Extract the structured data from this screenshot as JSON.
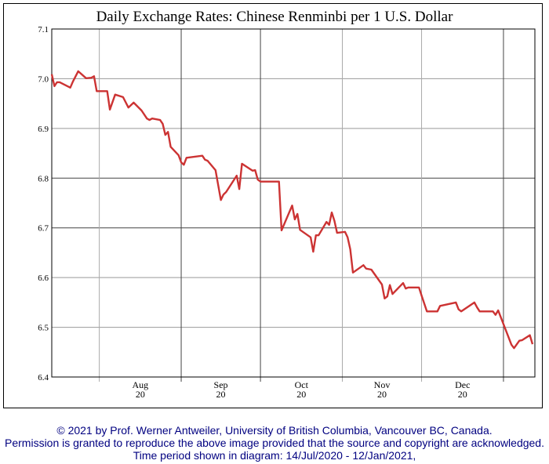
{
  "chart_data": {
    "type": "line",
    "title": "Daily Exchange Rates: Chinese Renminbi per 1 U.S. Dollar",
    "xlabel": "",
    "ylabel": "",
    "ylim": [
      6.4,
      7.1
    ],
    "xlim": [
      "2020-07-14",
      "2021-01-12"
    ],
    "yticks": [
      "6.4",
      "6.5",
      "6.6",
      "6.7",
      "6.8",
      "6.9",
      "7.0",
      "7.1"
    ],
    "xticks": [
      {
        "month": "Aug",
        "year": "20"
      },
      {
        "month": "Sep",
        "year": "20"
      },
      {
        "month": "Oct",
        "year": "20"
      },
      {
        "month": "Nov",
        "year": "20"
      },
      {
        "month": "Dec",
        "year": "20"
      }
    ],
    "grid": true,
    "line_color": "#cc3333",
    "series": [
      {
        "x": [
          "2020-07-14",
          "2020-07-15",
          "2020-07-16",
          "2020-07-17",
          "2020-07-21",
          "2020-07-22",
          "2020-07-24",
          "2020-07-27",
          "2020-07-29",
          "2020-07-30",
          "2020-07-31",
          "2020-08-04",
          "2020-08-05",
          "2020-08-07",
          "2020-08-10",
          "2020-08-12",
          "2020-08-14",
          "2020-08-17",
          "2020-08-19",
          "2020-08-20",
          "2020-08-21",
          "2020-08-24",
          "2020-08-25",
          "2020-08-26",
          "2020-08-27",
          "2020-08-28",
          "2020-08-31",
          "2020-09-01",
          "2020-09-02",
          "2020-09-03",
          "2020-09-09",
          "2020-09-10",
          "2020-09-11",
          "2020-09-14",
          "2020-09-16",
          "2020-09-17",
          "2020-09-18",
          "2020-09-22",
          "2020-09-23",
          "2020-09-24",
          "2020-09-28",
          "2020-09-29",
          "2020-09-30",
          "2020-10-01",
          "2020-10-06",
          "2020-10-08",
          "2020-10-09",
          "2020-10-13",
          "2020-10-14",
          "2020-10-15",
          "2020-10-16",
          "2020-10-20",
          "2020-10-21",
          "2020-10-22",
          "2020-10-23",
          "2020-10-26",
          "2020-10-27",
          "2020-10-28",
          "2020-10-29",
          "2020-10-30",
          "2020-11-02",
          "2020-11-03",
          "2020-11-04",
          "2020-11-05",
          "2020-11-09",
          "2020-11-10",
          "2020-11-12",
          "2020-11-16",
          "2020-11-17",
          "2020-11-18",
          "2020-11-19",
          "2020-11-20",
          "2020-11-24",
          "2020-11-25",
          "2020-11-26",
          "2020-11-30",
          "2020-12-01",
          "2020-12-03",
          "2020-12-07",
          "2020-12-08",
          "2020-12-14",
          "2020-12-15",
          "2020-12-16",
          "2020-12-21",
          "2020-12-22",
          "2020-12-23",
          "2020-12-28",
          "2020-12-29",
          "2020-12-30",
          "2021-01-04",
          "2021-01-05",
          "2021-01-07",
          "2021-01-08",
          "2021-01-11",
          "2021-01-12"
        ],
        "y": [
          7.009,
          6.985,
          6.993,
          6.993,
          6.982,
          6.994,
          7.015,
          7.001,
          7.002,
          7.005,
          6.975,
          6.975,
          6.938,
          6.968,
          6.963,
          6.942,
          6.952,
          6.936,
          6.92,
          6.917,
          6.92,
          6.917,
          6.909,
          6.887,
          6.893,
          6.863,
          6.846,
          6.832,
          6.827,
          6.841,
          6.845,
          6.837,
          6.835,
          6.816,
          6.756,
          6.767,
          6.772,
          6.805,
          6.778,
          6.829,
          6.815,
          6.816,
          6.797,
          6.793,
          6.793,
          6.793,
          6.695,
          6.745,
          6.717,
          6.728,
          6.696,
          6.681,
          6.652,
          6.685,
          6.685,
          6.712,
          6.706,
          6.731,
          6.714,
          6.69,
          6.692,
          6.681,
          6.657,
          6.61,
          6.625,
          6.618,
          6.616,
          6.586,
          6.558,
          6.562,
          6.585,
          6.567,
          6.589,
          6.578,
          6.58,
          6.58,
          6.564,
          6.532,
          6.532,
          6.543,
          6.55,
          6.536,
          6.532,
          6.55,
          6.54,
          6.532,
          6.532,
          6.525,
          6.534,
          6.465,
          6.458,
          6.473,
          6.474,
          6.484,
          6.466
        ]
      }
    ]
  },
  "footer": {
    "line1": "© 2021 by Prof. Werner Antweiler, University of British Columbia, Vancouver BC, Canada.",
    "line2": "Permission is granted to reproduce the above image provided that the source and copyright are acknowledged.",
    "line3": "Time period shown in diagram: 14/Jul/2020 - 12/Jan/2021,"
  }
}
